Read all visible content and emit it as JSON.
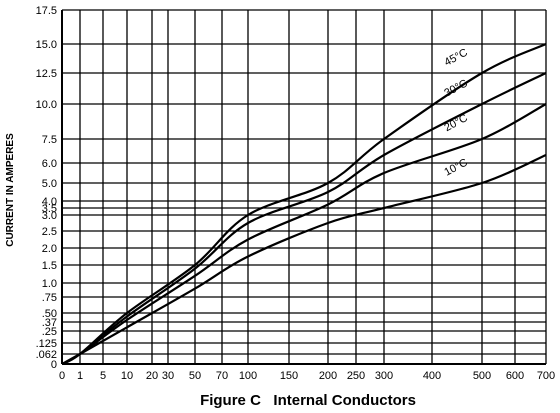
{
  "chart_data": {
    "type": "line",
    "caption": "Figure C   Internal Conductors",
    "ylabel": "CURRENT IN AMPERES",
    "xlabel": "",
    "grid": true,
    "legend": "none (curves labeled directly)",
    "x_ticks": [
      "0",
      "1",
      "5",
      "10",
      "20",
      "30",
      "50",
      "70",
      "100",
      "150",
      "200",
      "250",
      "300",
      "400",
      "500",
      "600",
      "700"
    ],
    "y_ticks": [
      "0",
      ".062",
      ".125",
      ".25",
      ".37",
      ".50",
      ".75",
      "1.0",
      "1.5",
      "2.0",
      "2.5",
      "3.0",
      "3.5",
      "4.0",
      "5.0",
      "6.0",
      "7.5",
      "10.0",
      "12.5",
      "15.0",
      "17.5"
    ],
    "series": [
      {
        "name": "45°C",
        "x": [
          0,
          1,
          10,
          50,
          100,
          200,
          300,
          500,
          700
        ],
        "y": [
          0,
          0.062,
          0.5,
          1.5,
          3.0,
          5.0,
          7.5,
          12.5,
          15.0
        ]
      },
      {
        "name": "30°C",
        "x": [
          0,
          1,
          10,
          50,
          100,
          200,
          300,
          500,
          700
        ],
        "y": [
          0,
          0.062,
          0.45,
          1.4,
          2.75,
          4.5,
          6.5,
          10.0,
          12.5
        ]
      },
      {
        "name": "20°C",
        "x": [
          0,
          1,
          10,
          50,
          100,
          200,
          300,
          500,
          700
        ],
        "y": [
          0,
          0.062,
          0.4,
          1.2,
          2.25,
          3.75,
          5.5,
          7.5,
          10.0
        ]
      },
      {
        "name": "10°C",
        "x": [
          0,
          1,
          10,
          50,
          100,
          200,
          300,
          500,
          700
        ],
        "y": [
          0,
          0.062,
          0.3,
          0.9,
          1.75,
          2.75,
          3.5,
          5.0,
          6.5
        ]
      }
    ]
  }
}
